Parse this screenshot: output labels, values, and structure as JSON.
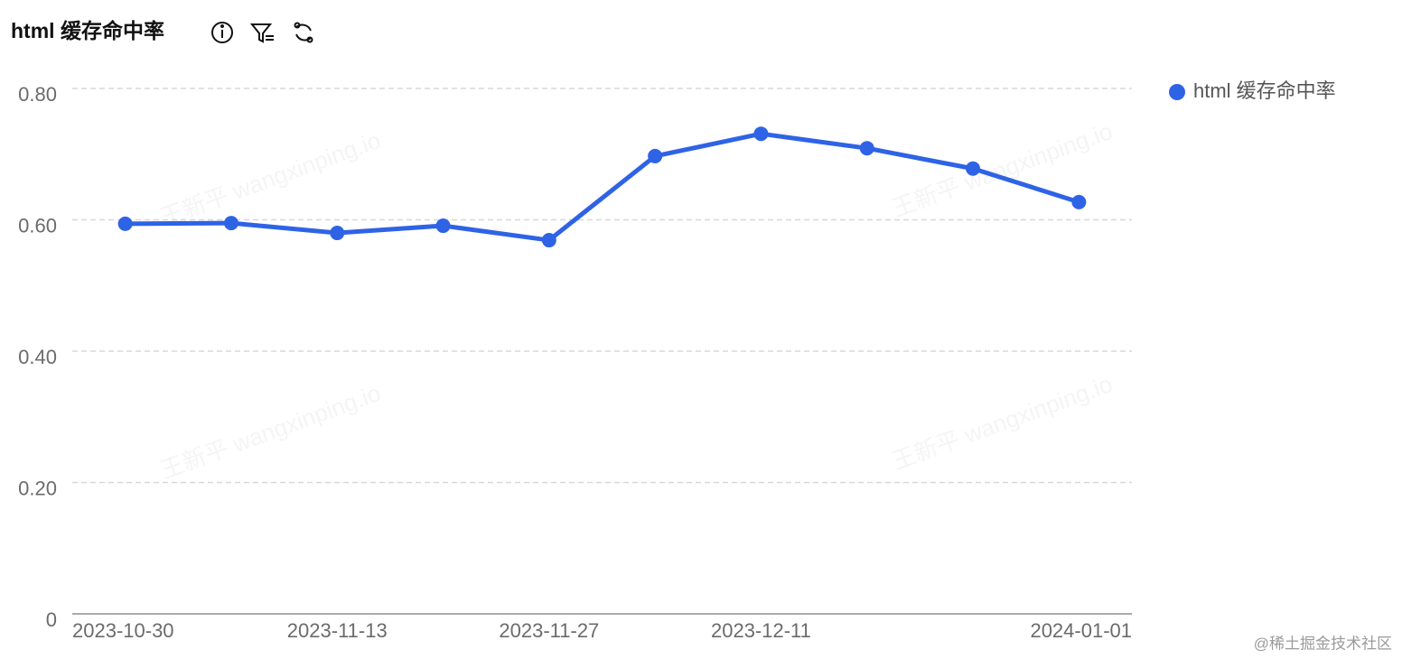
{
  "chart_data": {
    "type": "line",
    "title": "html 缓存命中率",
    "categories": [
      "2023-10-30",
      null,
      "2023-11-13",
      null,
      "2023-11-27",
      null,
      "2023-12-11",
      null,
      null,
      "2024-01-01"
    ],
    "series": [
      {
        "name": "html 缓存命中率",
        "color": "#2f63e6",
        "values": [
          0.594,
          0.595,
          0.58,
          0.591,
          0.569,
          0.697,
          0.731,
          0.709,
          0.678,
          0.627
        ]
      }
    ],
    "ylim": [
      0,
      0.8
    ],
    "yticks": [
      0,
      {
        "value": 0.2,
        "label": "0.20"
      },
      {
        "value": 0.4,
        "label": "0.40"
      },
      {
        "value": 0.6,
        "label": "0.60"
      },
      {
        "value": 0.8,
        "label": "0.80"
      }
    ],
    "grid": true,
    "legend": "top-right",
    "watermark": "王新平 wangxinping.io",
    "footer": "@稀土掘金技术社区"
  }
}
